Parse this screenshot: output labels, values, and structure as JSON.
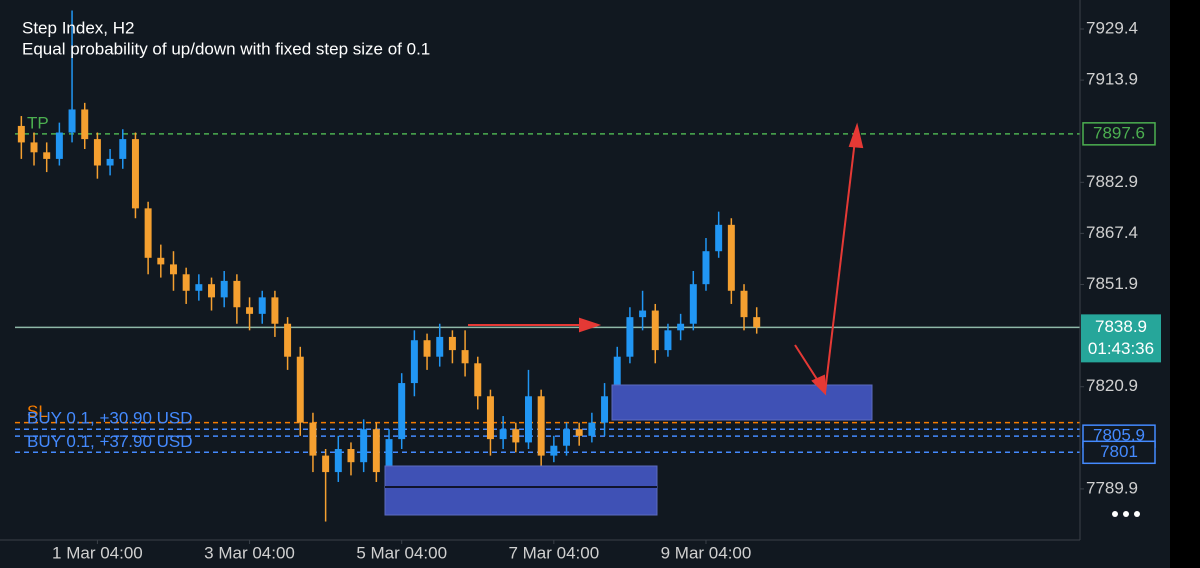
{
  "chart_data": {
    "type": "candlestick",
    "title": "Step Index, H2",
    "subtitle": "Equal probability of up/down with fixed step size of 0.1",
    "up_color": "#2196f3",
    "down_color": "#f5a030",
    "open": [
      7900,
      7895,
      7892,
      7890,
      7898,
      7905,
      7896,
      7888,
      7890,
      7896,
      7875,
      7860,
      7858,
      7855,
      7850,
      7852,
      7848,
      7853,
      7845,
      7843,
      7848,
      7840,
      7830,
      7810,
      7800,
      7795,
      7802,
      7798,
      7808,
      7795,
      7805,
      7822,
      7835,
      7830,
      7836,
      7832,
      7828,
      7818,
      7805,
      7808,
      7804,
      7818,
      7800,
      7803,
      7808,
      7806,
      7810,
      7818,
      7830,
      7842,
      7844,
      7832,
      7838,
      7840,
      7852,
      7862,
      7870,
      7850,
      7842
    ],
    "high": [
      7903,
      7898,
      7895,
      7901,
      7935,
      7907,
      7898,
      7893,
      7899,
      7898,
      7877,
      7864,
      7862,
      7857,
      7855,
      7854,
      7856,
      7855,
      7848,
      7850,
      7850,
      7842,
      7833,
      7813,
      7802,
      7806,
      7804,
      7811,
      7810,
      7808,
      7825,
      7838,
      7837,
      7840,
      7838,
      7838,
      7830,
      7820,
      7812,
      7810,
      7826,
      7820,
      7806,
      7810,
      7810,
      7813,
      7822,
      7833,
      7845,
      7850,
      7846,
      7840,
      7843,
      7856,
      7866,
      7874,
      7872,
      7852,
      7845
    ],
    "low": [
      7890,
      7888,
      7886,
      7888,
      7895,
      7893,
      7884,
      7885,
      7887,
      7872,
      7855,
      7854,
      7850,
      7846,
      7847,
      7844,
      7845,
      7840,
      7838,
      7840,
      7836,
      7826,
      7806,
      7795,
      7780,
      7792,
      7794,
      7795,
      7792,
      7793,
      7802,
      7818,
      7826,
      7827,
      7828,
      7824,
      7814,
      7800,
      7802,
      7801,
      7802,
      7796,
      7798,
      7800,
      7803,
      7804,
      7806,
      7815,
      7828,
      7838,
      7828,
      7830,
      7835,
      7838,
      7850,
      7860,
      7846,
      7838,
      7837
    ],
    "close": [
      7895,
      7892,
      7890,
      7898,
      7905,
      7896,
      7888,
      7890,
      7896,
      7875,
      7860,
      7858,
      7855,
      7850,
      7852,
      7848,
      7853,
      7845,
      7843,
      7848,
      7840,
      7830,
      7810,
      7800,
      7795,
      7802,
      7798,
      7808,
      7795,
      7805,
      7822,
      7835,
      7830,
      7836,
      7832,
      7828,
      7818,
      7805,
      7808,
      7804,
      7818,
      7800,
      7803,
      7808,
      7806,
      7810,
      7818,
      7830,
      7842,
      7844,
      7832,
      7838,
      7840,
      7852,
      7862,
      7870,
      7850,
      7842,
      7838.9
    ],
    "xlim": [
      -0.5,
      83.5
    ],
    "xticks": [
      {
        "value": 6,
        "label": "1 Mar 04:00"
      },
      {
        "value": 18,
        "label": "3 Mar 04:00"
      },
      {
        "value": 30,
        "label": "5 Mar 04:00"
      },
      {
        "value": 42,
        "label": "7 Mar 04:00"
      },
      {
        "value": 54,
        "label": "9 Mar 04:00"
      }
    ],
    "ylim": [
      7774.4,
      7938.2
    ],
    "yticks": [
      7929.4,
      7913.9,
      7882.9,
      7867.4,
      7851.9,
      7820.9,
      7789.9
    ],
    "levels": [
      {
        "name": "TP",
        "value": 7897.6,
        "color": "#4caf50",
        "price_box": true
      },
      {
        "name": "SL",
        "value": 7810,
        "color": "#f57c00"
      },
      {
        "name": "BUY 0.1, +30.90 USD",
        "value": 7808,
        "color": "#448aff"
      },
      {
        "value": 7805.9,
        "color": "#448aff",
        "price_box": true
      },
      {
        "name": "BUY 0.1, +37.90 USD",
        "value": 7801.0,
        "color": "#448aff",
        "price_box": true
      }
    ],
    "last_price": 7838.9,
    "last_color": "#26a69a",
    "countdown": "01:43:36"
  }
}
